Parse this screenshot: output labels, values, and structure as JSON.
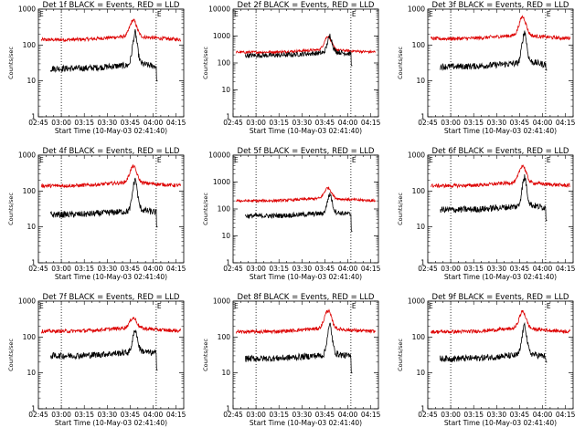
{
  "chart_data": [
    {
      "type": "line",
      "title": "Det 1f BLACK = Events, RED = LLD",
      "xlabel": "Start Time (10-May-03 02:41:40)",
      "ylabel": "Counts/sec",
      "yscale": "log",
      "ylim": [
        1,
        1000
      ],
      "xlim": [
        "02:45",
        "04:20"
      ],
      "xticks": [
        "02:45",
        "03:00",
        "03:15",
        "03:30",
        "03:45",
        "04:00",
        "04:15"
      ],
      "yticks": [
        "1",
        "10",
        "100",
        "1000"
      ],
      "markers": [
        {
          "time": "03:00",
          "label": ""
        },
        {
          "time": "04:02",
          "label": "E"
        }
      ],
      "corner_label": "E",
      "series": [
        {
          "name": "Events",
          "color": "#000000",
          "baseline": 22,
          "peak": 150,
          "peak_time": "03:48",
          "start": "02:53",
          "end": "04:03",
          "drop_to": 10
        },
        {
          "name": "LLD",
          "color": "#dd0000",
          "baseline": 140,
          "peak": 400,
          "peak_time": "03:47",
          "start": "02:47",
          "end": "04:18"
        }
      ]
    },
    {
      "type": "line",
      "title": "Det 2f BLACK = Events, RED = LLD",
      "xlabel": "Start Time (10-May-03 02:41:40)",
      "ylabel": "Counts/sec",
      "yscale": "log",
      "ylim": [
        1,
        10000
      ],
      "xlim": [
        "02:45",
        "04:20"
      ],
      "xticks": [
        "02:45",
        "03:00",
        "03:15",
        "03:30",
        "03:45",
        "04:00",
        "04:15"
      ],
      "yticks": [
        "1",
        "10",
        "100",
        "1000",
        "10000"
      ],
      "markers": [
        {
          "time": "03:00",
          "label": ""
        },
        {
          "time": "04:02",
          "label": "E"
        }
      ],
      "corner_label": "E",
      "series": [
        {
          "name": "Events",
          "color": "#000000",
          "baseline": 190,
          "peak": 700,
          "peak_time": "03:48",
          "start": "02:53",
          "end": "04:03",
          "drop_to": 80
        },
        {
          "name": "LLD",
          "color": "#dd0000",
          "baseline": 250,
          "peak": 800,
          "peak_time": "03:47",
          "start": "02:47",
          "end": "04:18"
        }
      ]
    },
    {
      "type": "line",
      "title": "Det 3f BLACK = Events, RED = LLD",
      "xlabel": "Start Time (10-May-03 02:41:40)",
      "ylabel": "Counts/sec",
      "yscale": "log",
      "ylim": [
        1,
        1000
      ],
      "xlim": [
        "02:45",
        "04:20"
      ],
      "xticks": [
        "02:45",
        "03:00",
        "03:15",
        "03:30",
        "03:45",
        "04:00",
        "04:15"
      ],
      "yticks": [
        "1",
        "10",
        "100",
        "1000"
      ],
      "markers": [
        {
          "time": "03:00",
          "label": ""
        },
        {
          "time": "04:02",
          "label": "E"
        }
      ],
      "corner_label": "E",
      "series": [
        {
          "name": "Events",
          "color": "#000000",
          "baseline": 25,
          "peak": 160,
          "peak_time": "03:48",
          "start": "02:53",
          "end": "04:03",
          "drop_to": 20
        },
        {
          "name": "LLD",
          "color": "#dd0000",
          "baseline": 150,
          "peak": 500,
          "peak_time": "03:47",
          "start": "02:47",
          "end": "04:18"
        }
      ]
    },
    {
      "type": "line",
      "title": "Det 4f BLACK = Events, RED = LLD",
      "xlabel": "Start Time (10-May-03 02:41:40)",
      "ylabel": "Counts/sec",
      "yscale": "log",
      "ylim": [
        1,
        1000
      ],
      "xlim": [
        "02:45",
        "04:20"
      ],
      "xticks": [
        "02:45",
        "03:00",
        "03:15",
        "03:30",
        "03:45",
        "04:00",
        "04:15"
      ],
      "yticks": [
        "1",
        "10",
        "100",
        "1000"
      ],
      "markers": [
        {
          "time": "03:00",
          "label": ""
        },
        {
          "time": "04:02",
          "label": "E"
        }
      ],
      "corner_label": "E",
      "series": [
        {
          "name": "Events",
          "color": "#000000",
          "baseline": 22,
          "peak": 150,
          "peak_time": "03:48",
          "start": "02:53",
          "end": "04:03",
          "drop_to": 10
        },
        {
          "name": "LLD",
          "color": "#dd0000",
          "baseline": 140,
          "peak": 400,
          "peak_time": "03:47",
          "start": "02:47",
          "end": "04:18"
        }
      ]
    },
    {
      "type": "line",
      "title": "Det 5f BLACK = Events, RED = LLD",
      "xlabel": "Start Time (10-May-03 02:41:40)",
      "ylabel": "Counts/sec",
      "yscale": "log",
      "ylim": [
        1,
        10000
      ],
      "xlim": [
        "02:45",
        "04:20"
      ],
      "xticks": [
        "02:45",
        "03:00",
        "03:15",
        "03:30",
        "03:45",
        "04:00",
        "04:15"
      ],
      "yticks": [
        "1",
        "10",
        "100",
        "1000",
        "10000"
      ],
      "markers": [
        {
          "time": "03:00",
          "label": ""
        },
        {
          "time": "04:02",
          "label": "E"
        }
      ],
      "corner_label": "E",
      "series": [
        {
          "name": "Events",
          "color": "#000000",
          "baseline": 55,
          "peak": 250,
          "peak_time": "03:48",
          "start": "02:53",
          "end": "04:03",
          "drop_to": 15
        },
        {
          "name": "LLD",
          "color": "#dd0000",
          "baseline": 200,
          "peak": 500,
          "peak_time": "03:47",
          "start": "02:47",
          "end": "04:18"
        }
      ]
    },
    {
      "type": "line",
      "title": "Det 6f BLACK = Events, RED = LLD",
      "xlabel": "Start Time (10-May-03 02:41:40)",
      "ylabel": "Counts/sec",
      "yscale": "log",
      "ylim": [
        1,
        1000
      ],
      "xlim": [
        "02:45",
        "04:20"
      ],
      "xticks": [
        "02:45",
        "03:00",
        "03:15",
        "03:30",
        "03:45",
        "04:00",
        "04:15"
      ],
      "yticks": [
        "1",
        "10",
        "100",
        "1000"
      ],
      "markers": [
        {
          "time": "03:00",
          "label": ""
        },
        {
          "time": "04:02",
          "label": "E"
        }
      ],
      "corner_label": "E",
      "series": [
        {
          "name": "Events",
          "color": "#000000",
          "baseline": 30,
          "peak": 170,
          "peak_time": "03:48",
          "start": "02:53",
          "end": "04:03",
          "drop_to": 15
        },
        {
          "name": "LLD",
          "color": "#dd0000",
          "baseline": 140,
          "peak": 420,
          "peak_time": "03:47",
          "start": "02:47",
          "end": "04:18"
        }
      ]
    },
    {
      "type": "line",
      "title": "Det 7f BLACK = Events, RED = LLD",
      "xlabel": "Start Time (10-May-03 02:41:40)",
      "ylabel": "Counts/sec",
      "yscale": "log",
      "ylim": [
        1,
        1000
      ],
      "xlim": [
        "02:45",
        "04:20"
      ],
      "xticks": [
        "02:45",
        "03:00",
        "03:15",
        "03:30",
        "03:45",
        "04:00",
        "04:15"
      ],
      "yticks": [
        "1",
        "10",
        "100",
        "1000"
      ],
      "markers": [
        {
          "time": "03:00",
          "label": ""
        },
        {
          "time": "04:02",
          "label": "E"
        }
      ],
      "corner_label": "E",
      "series": [
        {
          "name": "Events",
          "color": "#000000",
          "baseline": 30,
          "peak": 110,
          "peak_time": "03:48",
          "start": "02:53",
          "end": "04:03",
          "drop_to": 12
        },
        {
          "name": "LLD",
          "color": "#dd0000",
          "baseline": 145,
          "peak": 280,
          "peak_time": "03:47",
          "start": "02:47",
          "end": "04:18"
        }
      ]
    },
    {
      "type": "line",
      "title": "Det 8f BLACK = Events, RED = LLD",
      "xlabel": "Start Time (10-May-03 02:41:40)",
      "ylabel": "Counts/sec",
      "yscale": "log",
      "ylim": [
        1,
        1000
      ],
      "xlim": [
        "02:45",
        "04:20"
      ],
      "xticks": [
        "02:45",
        "03:00",
        "03:15",
        "03:30",
        "03:45",
        "04:00",
        "04:15"
      ],
      "yticks": [
        "1",
        "10",
        "100",
        "1000"
      ],
      "markers": [
        {
          "time": "03:00",
          "label": ""
        },
        {
          "time": "04:02",
          "label": "E"
        }
      ],
      "corner_label": "E",
      "series": [
        {
          "name": "Events",
          "color": "#000000",
          "baseline": 25,
          "peak": 150,
          "peak_time": "03:48",
          "start": "02:53",
          "end": "04:03",
          "drop_to": 10
        },
        {
          "name": "LLD",
          "color": "#dd0000",
          "baseline": 140,
          "peak": 450,
          "peak_time": "03:47",
          "start": "02:47",
          "end": "04:18"
        }
      ]
    },
    {
      "type": "line",
      "title": "Det 9f BLACK = Events, RED = LLD",
      "xlabel": "Start Time (10-May-03 02:41:40)",
      "ylabel": "Counts/sec",
      "yscale": "log",
      "ylim": [
        1,
        1000
      ],
      "xlim": [
        "02:45",
        "04:20"
      ],
      "xticks": [
        "02:45",
        "03:00",
        "03:15",
        "03:30",
        "03:45",
        "04:00",
        "04:15"
      ],
      "yticks": [
        "1",
        "10",
        "100",
        "1000"
      ],
      "markers": [
        {
          "time": "03:00",
          "label": ""
        },
        {
          "time": "04:02",
          "label": "E"
        }
      ],
      "corner_label": "E",
      "series": [
        {
          "name": "Events",
          "color": "#000000",
          "baseline": 25,
          "peak": 150,
          "peak_time": "03:48",
          "start": "02:53",
          "end": "04:03",
          "drop_to": 20
        },
        {
          "name": "LLD",
          "color": "#dd0000",
          "baseline": 140,
          "peak": 420,
          "peak_time": "03:47",
          "start": "02:47",
          "end": "04:18"
        }
      ]
    }
  ]
}
